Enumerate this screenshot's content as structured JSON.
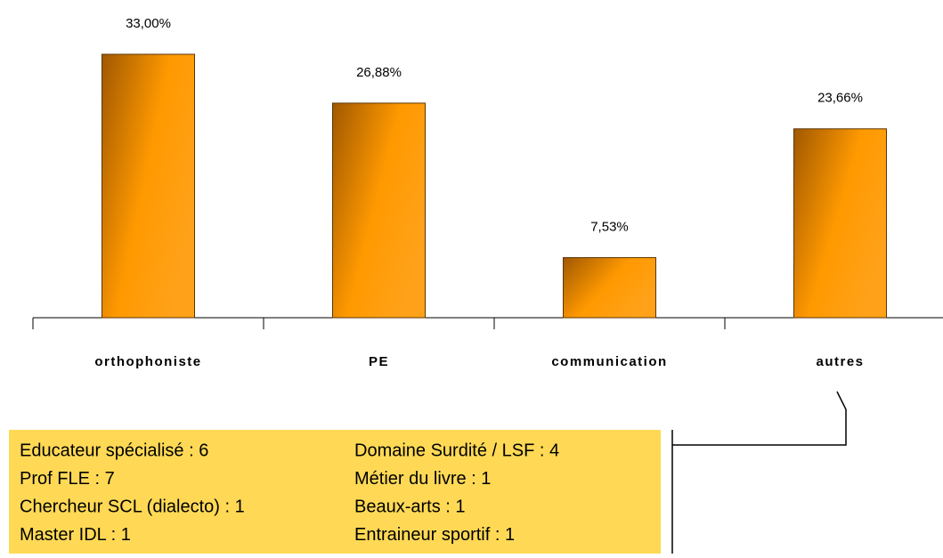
{
  "chart_data": {
    "type": "bar",
    "categories": [
      "orthophoniste",
      "PE",
      "communication",
      "autres"
    ],
    "values": [
      33.0,
      26.88,
      7.53,
      23.66
    ],
    "value_labels": [
      "33,00%",
      "26,88%",
      "7,53%",
      "23,66%"
    ],
    "color": "#ff9900",
    "annotation": {
      "columns": [
        [
          "Educateur spécialisé : 6",
          "Prof FLE : 7",
          "Chercheur SCL (dialecto) : 1",
          "Master IDL : 1"
        ],
        [
          "Domaine Surdité / LSF : 4",
          "Métier du livre : 1",
          "Beaux-arts : 1",
          "Entraineur sportif : 1"
        ]
      ]
    }
  }
}
